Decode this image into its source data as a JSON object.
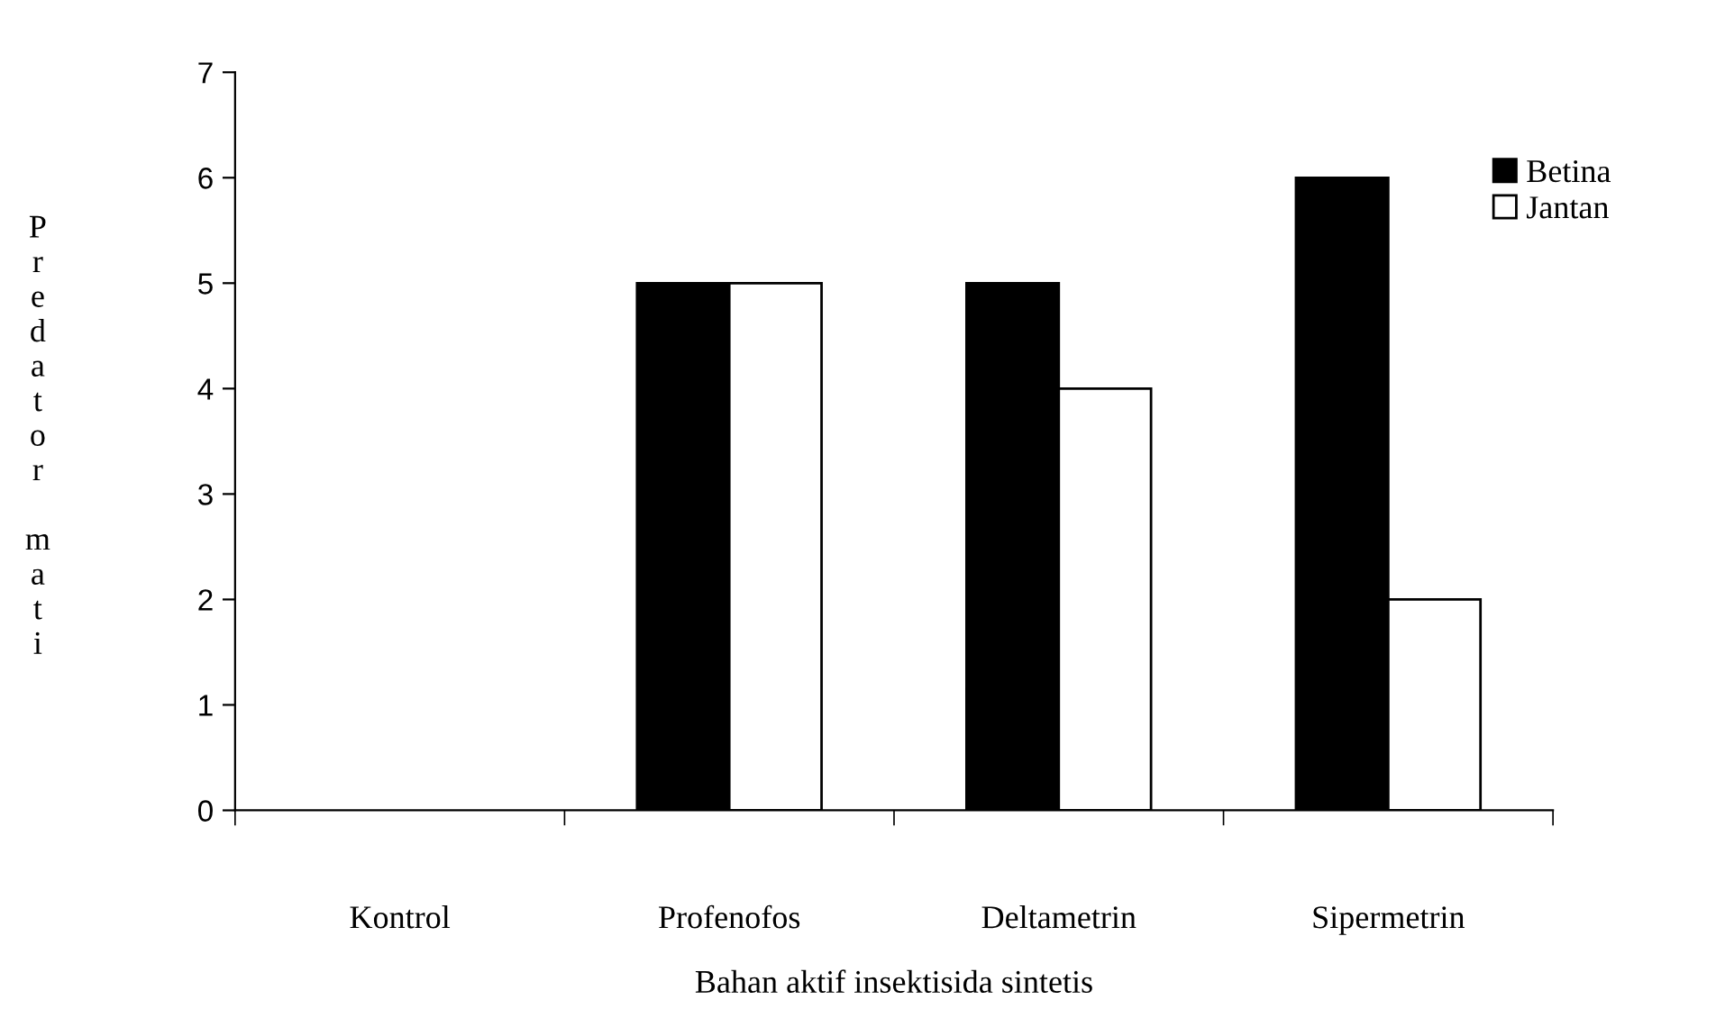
{
  "chart_data": {
    "type": "bar",
    "xlabel": "Bahan aktif insektisida sintetis",
    "ylabel": "Predator mati",
    "categories": [
      "Kontrol",
      "Profenofos",
      "Deltametrin",
      "Sipermetrin"
    ],
    "series": [
      {
        "name": "Betina",
        "color": "#000000",
        "values": [
          0,
          5,
          5,
          6
        ]
      },
      {
        "name": "Jantan",
        "color": "#ffffff",
        "values": [
          0,
          5,
          4,
          2
        ]
      }
    ],
    "ylim": [
      0,
      7
    ],
    "yticks": [
      0,
      1,
      2,
      3,
      4,
      5,
      6,
      7
    ],
    "grid": false,
    "legend": "top right"
  }
}
